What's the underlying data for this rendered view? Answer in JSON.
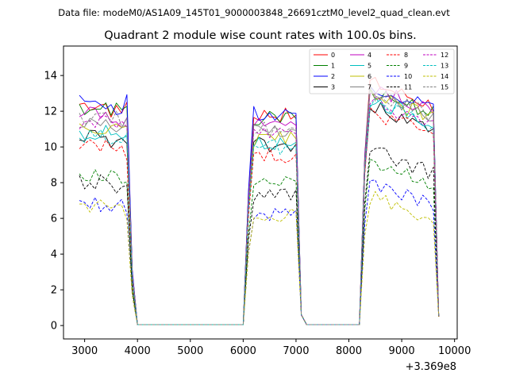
{
  "chart_data": {
    "type": "line",
    "file_label": "Data file: modeM0/AS1A09_145T01_9000003848_26691cztM0_level2_quad_clean.evt",
    "title": "Quadrant 2 module wise count rates with 100.0s bins.",
    "xlabel": "",
    "ylabel": "",
    "x_offset_label": "+3.369e8",
    "xlim": [
      2600,
      10050
    ],
    "ylim": [
      -0.75,
      15.65
    ],
    "x_ticks": [
      3000,
      4000,
      5000,
      6000,
      7000,
      8000,
      9000,
      10000
    ],
    "x_tick_labels": [
      "3000",
      "4000",
      "5000",
      "6000",
      "7000",
      "8000",
      "9000",
      "10000"
    ],
    "y_ticks": [
      0,
      2,
      4,
      6,
      8,
      10,
      12,
      14
    ],
    "y_tick_labels": [
      "0",
      "2",
      "4",
      "6",
      "8",
      "10",
      "12",
      "14"
    ],
    "legend_location": "upper right",
    "x": [
      2900,
      3000,
      3100,
      3200,
      3300,
      3400,
      3500,
      3600,
      3700,
      3800,
      3900,
      4000,
      4100,
      4200,
      4300,
      4400,
      4500,
      4600,
      4700,
      4800,
      4900,
      5000,
      5100,
      5200,
      5300,
      5400,
      5500,
      5600,
      5700,
      5800,
      5900,
      6000,
      6100,
      6200,
      6300,
      6400,
      6500,
      6600,
      6700,
      6800,
      6900,
      7000,
      7100,
      7200,
      7300,
      7400,
      7500,
      7600,
      7700,
      7800,
      7900,
      8000,
      8100,
      8200,
      8300,
      8400,
      8500,
      8600,
      8700,
      8800,
      8900,
      9000,
      9100,
      9200,
      9300,
      9400,
      9500,
      9600,
      9700
    ],
    "series": [
      {
        "name": "0",
        "color": "#ff0000",
        "dash": false,
        "level": 12.4,
        "seg3": 13.6
      },
      {
        "name": "1",
        "color": "#008000",
        "dash": false,
        "level": 12.2,
        "seg3": 13.2
      },
      {
        "name": "2",
        "color": "#0000ff",
        "dash": false,
        "level": 12.5,
        "seg3": 13.5
      },
      {
        "name": "3",
        "color": "#000000",
        "dash": false,
        "level": 10.7,
        "seg3": 12.3
      },
      {
        "name": "4",
        "color": "#bf00bf",
        "dash": false,
        "level": 11.8,
        "seg3": 13.3
      },
      {
        "name": "5",
        "color": "#00bfbf",
        "dash": false,
        "level": 10.8,
        "seg3": 12.7
      },
      {
        "name": "6",
        "color": "#bfbf00",
        "dash": false,
        "level": 11.0,
        "seg3": 12.9
      },
      {
        "name": "7",
        "color": "#808080",
        "dash": false,
        "level": 11.5,
        "seg3": 13.0
      },
      {
        "name": "8",
        "color": "#ff0000",
        "dash": true,
        "level": 10.1,
        "seg3": 12.0
      },
      {
        "name": "9",
        "color": "#008000",
        "dash": true,
        "level": 8.5,
        "seg3": 9.2
      },
      {
        "name": "10",
        "color": "#0000ff",
        "dash": true,
        "level": 6.8,
        "seg3": 8.1
      },
      {
        "name": "11",
        "color": "#000000",
        "dash": true,
        "level": 8.0,
        "seg3": 9.8
      },
      {
        "name": "12",
        "color": "#bf00bf",
        "dash": true,
        "level": 11.3,
        "seg3": 12.6
      },
      {
        "name": "13",
        "color": "#00bfbf",
        "dash": true,
        "level": 10.6,
        "seg3": 12.5
      },
      {
        "name": "14",
        "color": "#bfbf00",
        "dash": true,
        "level": 6.7,
        "seg3": 7.2
      },
      {
        "name": "15",
        "color": "#808080",
        "dash": true,
        "level": 11.6,
        "seg3": 13.1
      }
    ]
  }
}
